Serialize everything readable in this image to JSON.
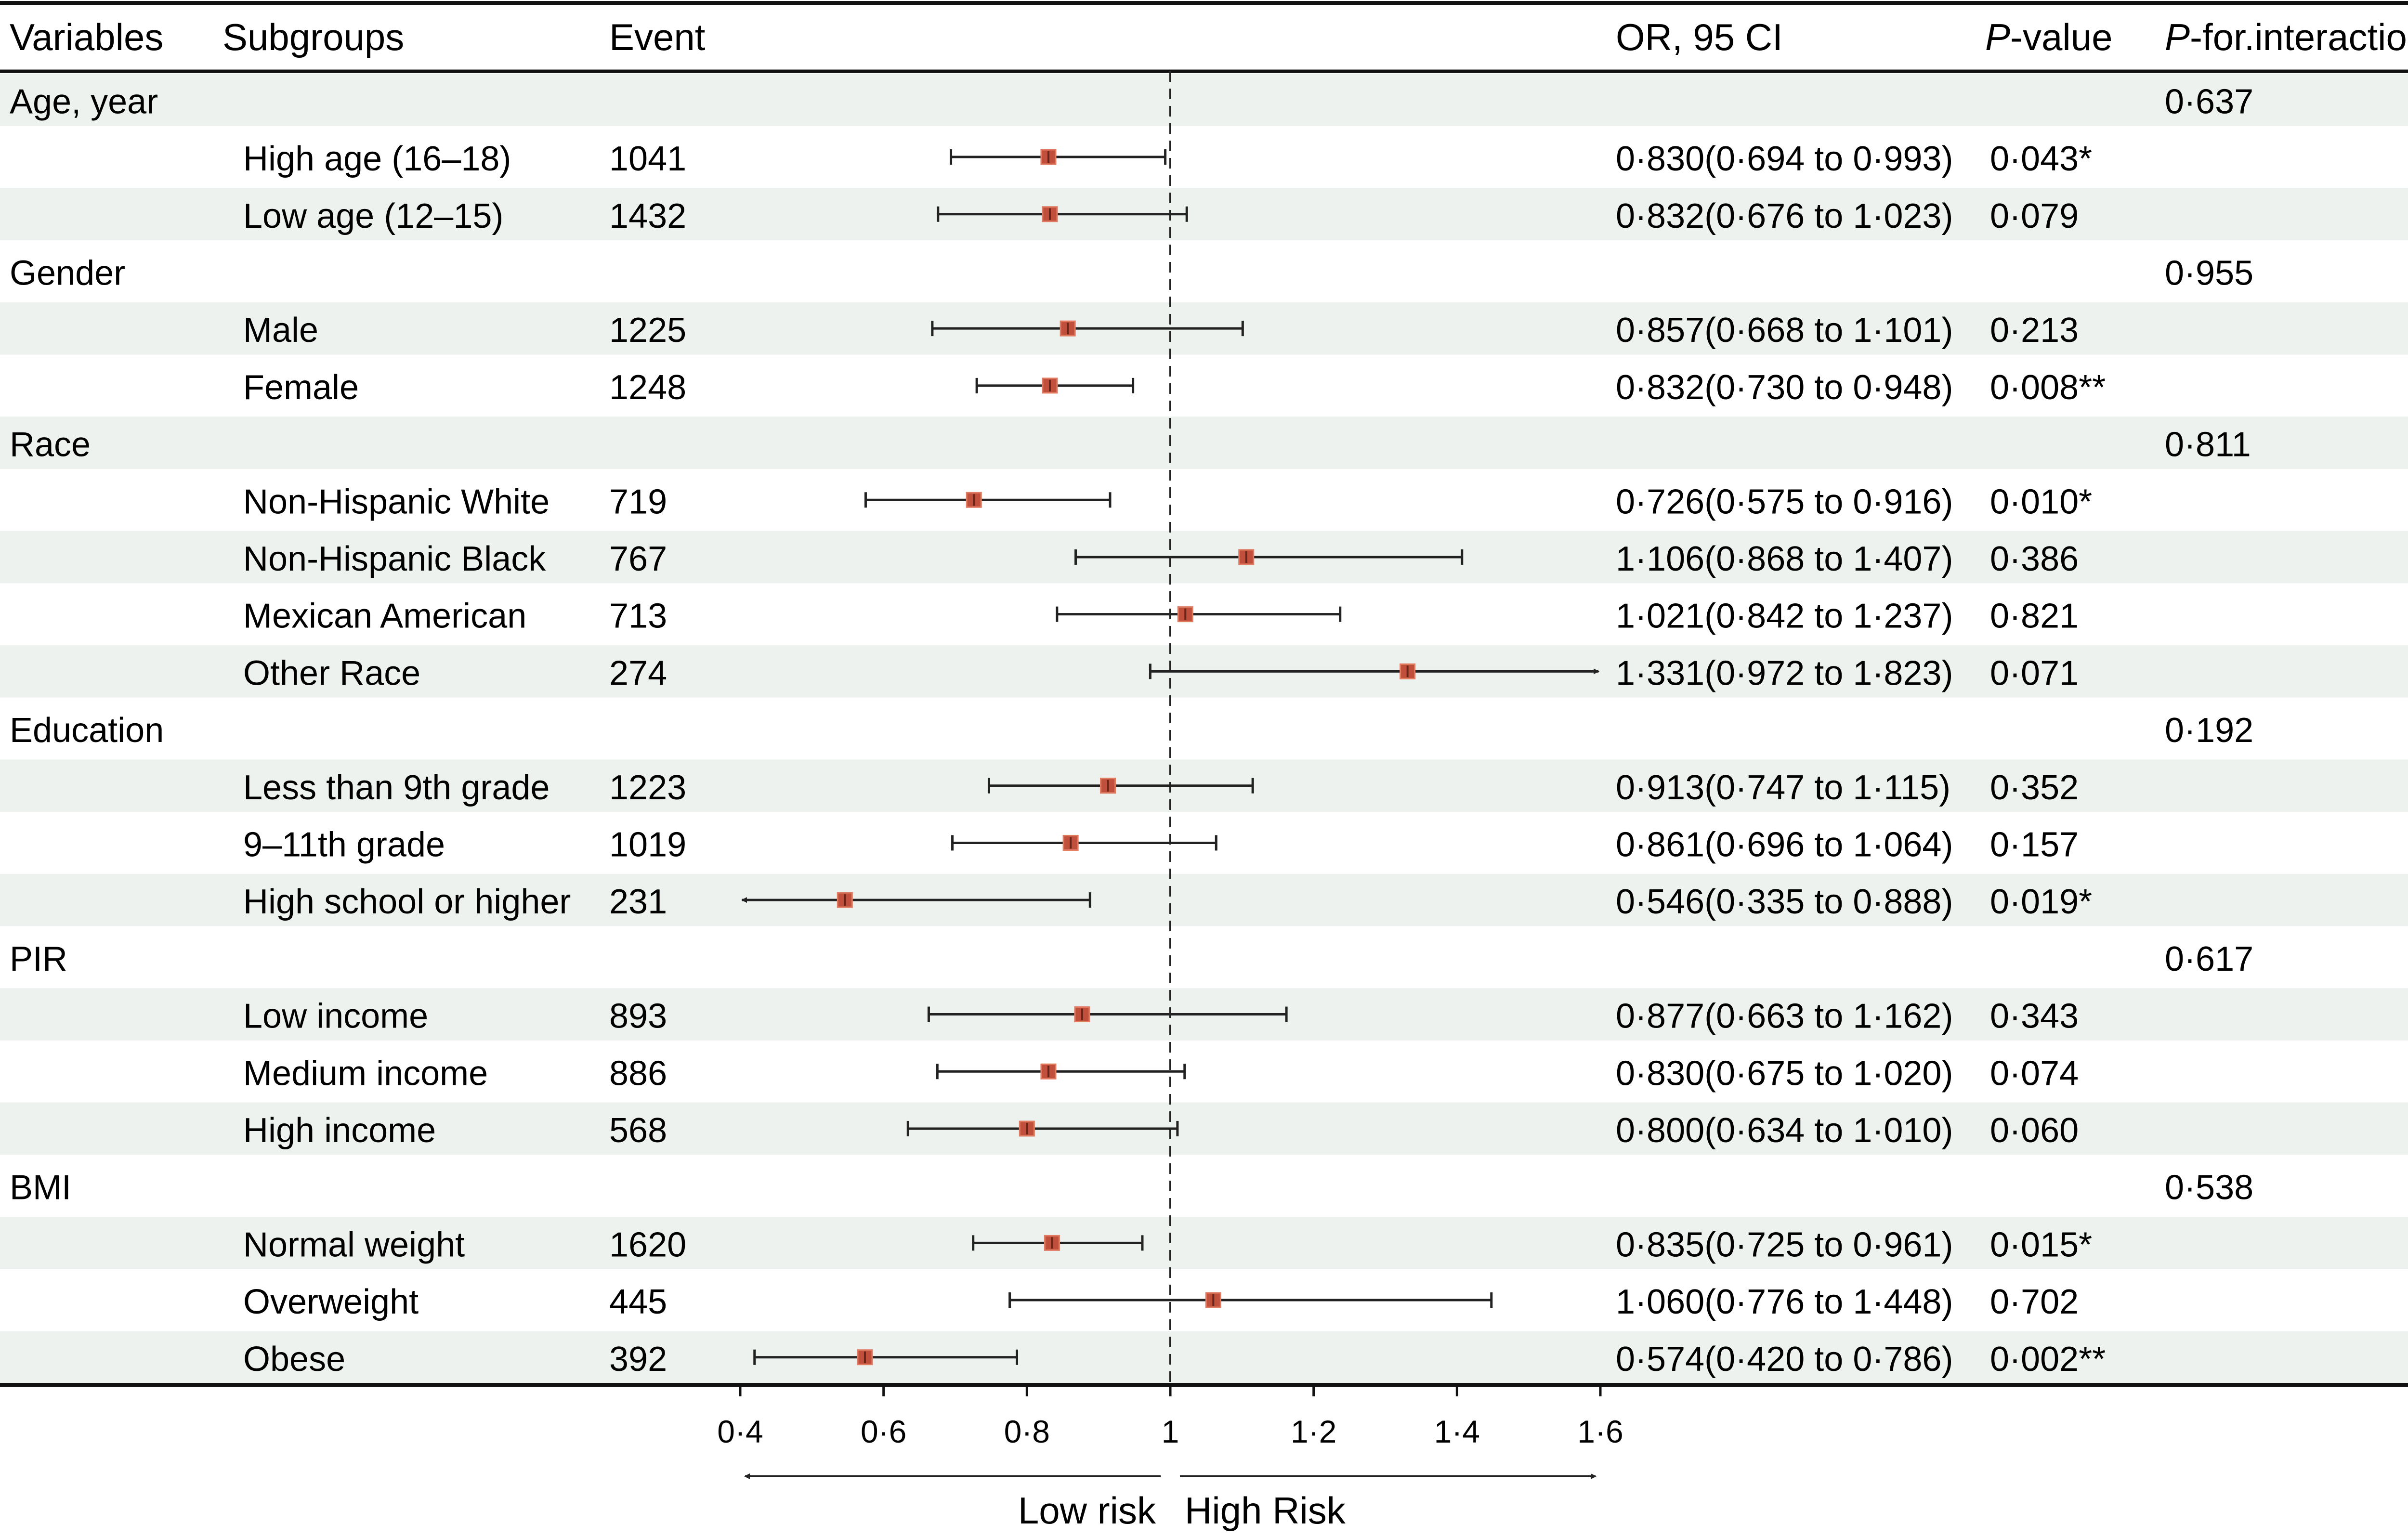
{
  "header": {
    "variables": "Variables",
    "subgroups": "Subgroups",
    "event": "Event",
    "or_ci": "OR, 95 CI",
    "p_value_italic": "P",
    "p_value_rest": "-value",
    "p_interaction_italic": "P",
    "p_interaction_rest": "-for.interaction"
  },
  "chart_data": {
    "type": "forest",
    "reference_value": 1,
    "xlim": [
      0.4,
      1.6
    ],
    "x_ticks": [
      0.4,
      0.6,
      0.8,
      1.0,
      1.2,
      1.4,
      1.6
    ],
    "x_tick_labels": [
      "0·4",
      "0·6",
      "0·8",
      "1",
      "1·2",
      "1·4",
      "1·6"
    ],
    "low_risk_label": "Low risk",
    "high_risk_label": "High Risk",
    "colors": {
      "point": "#c0503c",
      "point_edge": "#e07a60",
      "band": "#edf2ef",
      "line": "#222222"
    },
    "groups": [
      {
        "variable": "Age, year",
        "p_interaction": "0·637",
        "rows": [
          {
            "subgroup": "High age (16–18)",
            "event": "1041",
            "or": 0.83,
            "lower": 0.694,
            "upper": 0.993,
            "or_ci": "0·830(0·694 to 0·993)",
            "p_value": "0·043*"
          },
          {
            "subgroup": "Low age (12–15)",
            "event": "1432",
            "or": 0.832,
            "lower": 0.676,
            "upper": 1.023,
            "or_ci": "0·832(0·676 to 1·023)",
            "p_value": "0·079"
          }
        ]
      },
      {
        "variable": "Gender",
        "p_interaction": "0·955",
        "rows": [
          {
            "subgroup": "Male",
            "event": "1225",
            "or": 0.857,
            "lower": 0.668,
            "upper": 1.101,
            "or_ci": "0·857(0·668 to 1·101)",
            "p_value": "0·213"
          },
          {
            "subgroup": "Female",
            "event": "1248",
            "or": 0.832,
            "lower": 0.73,
            "upper": 0.948,
            "or_ci": "0·832(0·730 to 0·948)",
            "p_value": "0·008**"
          }
        ]
      },
      {
        "variable": "Race",
        "p_interaction": "0·811",
        "rows": [
          {
            "subgroup": "Non-Hispanic White",
            "event": "719",
            "or": 0.726,
            "lower": 0.575,
            "upper": 0.916,
            "or_ci": "0·726(0·575 to 0·916)",
            "p_value": "0·010*"
          },
          {
            "subgroup": "Non-Hispanic Black",
            "event": "767",
            "or": 1.106,
            "lower": 0.868,
            "upper": 1.407,
            "or_ci": "1·106(0·868 to 1·407)",
            "p_value": "0·386"
          },
          {
            "subgroup": "Mexican American",
            "event": "713",
            "or": 1.021,
            "lower": 0.842,
            "upper": 1.237,
            "or_ci": "1·021(0·842 to 1·237)",
            "p_value": "0·821"
          },
          {
            "subgroup": "Other Race",
            "event": "274",
            "or": 1.331,
            "lower": 0.972,
            "upper": 1.823,
            "or_ci": "1·331(0·972 to 1·823)",
            "p_value": "0·071"
          }
        ]
      },
      {
        "variable": "Education",
        "p_interaction": "0·192",
        "rows": [
          {
            "subgroup": "Less than 9th grade",
            "event": "1223",
            "or": 0.913,
            "lower": 0.747,
            "upper": 1.115,
            "or_ci": "0·913(0·747 to 1·115)",
            "p_value": "0·352"
          },
          {
            "subgroup": "9–11th grade",
            "event": "1019",
            "or": 0.861,
            "lower": 0.696,
            "upper": 1.064,
            "or_ci": "0·861(0·696 to 1·064)",
            "p_value": "0·157"
          },
          {
            "subgroup": "High school or higher",
            "event": "231",
            "or": 0.546,
            "lower": 0.335,
            "upper": 0.888,
            "or_ci": "0·546(0·335 to 0·888)",
            "p_value": "0·019*"
          }
        ]
      },
      {
        "variable": "PIR",
        "p_interaction": "0·617",
        "rows": [
          {
            "subgroup": "Low income",
            "event": "893",
            "or": 0.877,
            "lower": 0.663,
            "upper": 1.162,
            "or_ci": "0·877(0·663 to 1·162)",
            "p_value": "0·343"
          },
          {
            "subgroup": "Medium income",
            "event": "886",
            "or": 0.83,
            "lower": 0.675,
            "upper": 1.02,
            "or_ci": "0·830(0·675 to 1·020)",
            "p_value": "0·074"
          },
          {
            "subgroup": "High income",
            "event": "568",
            "or": 0.8,
            "lower": 0.634,
            "upper": 1.01,
            "or_ci": "0·800(0·634 to 1·010)",
            "p_value": "0·060"
          }
        ]
      },
      {
        "variable": "BMI",
        "p_interaction": "0·538",
        "rows": [
          {
            "subgroup": "Normal weight",
            "event": "1620",
            "or": 0.835,
            "lower": 0.725,
            "upper": 0.961,
            "or_ci": "0·835(0·725 to 0·961)",
            "p_value": "0·015*"
          },
          {
            "subgroup": "Overweight",
            "event": "445",
            "or": 1.06,
            "lower": 0.776,
            "upper": 1.448,
            "or_ci": "1·060(0·776 to 1·448)",
            "p_value": "0·702"
          },
          {
            "subgroup": "Obese",
            "event": "392",
            "or": 0.574,
            "lower": 0.42,
            "upper": 0.786,
            "or_ci": "0·574(0·420 to 0·786)",
            "p_value": "0·002**"
          }
        ]
      }
    ]
  }
}
